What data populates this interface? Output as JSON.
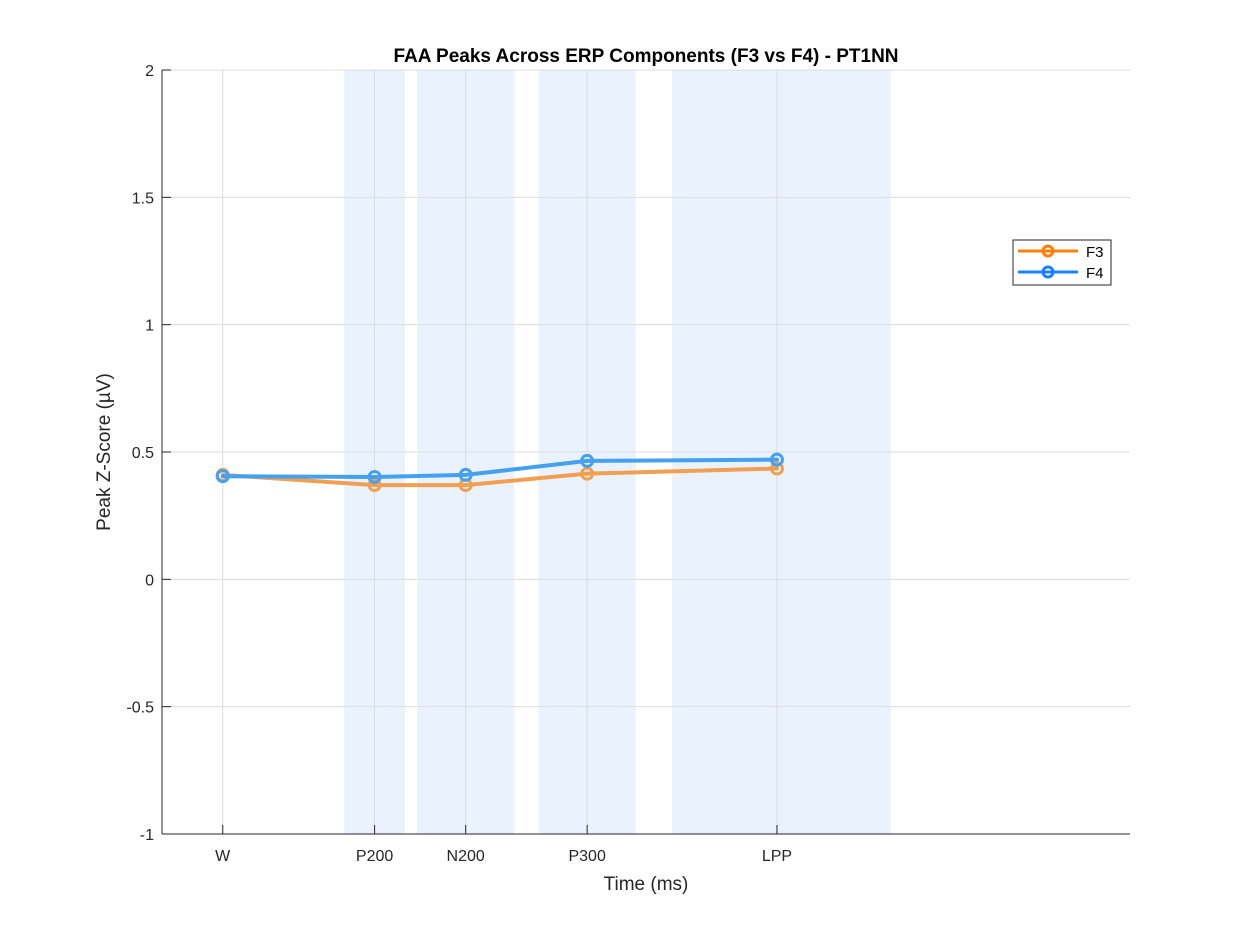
{
  "chart_data": {
    "type": "line",
    "title": "FAA Peaks Across ERP Components (F3 vs F4) - PT1NN",
    "xlabel": "Time (ms)",
    "ylabel": "Peak Z-Score (µV)",
    "categories": [
      "W",
      "P200",
      "N200",
      "P300",
      "LPP"
    ],
    "x": [
      0,
      200,
      320,
      480,
      730
    ],
    "xlim": [
      -80,
      1195
    ],
    "ylim": [
      -1,
      2
    ],
    "yticks": [
      -1,
      -0.5,
      0,
      0.5,
      1,
      1.5,
      2
    ],
    "ytick_labels": [
      "-1",
      "-0.5",
      "0",
      "0.5",
      "1",
      "1.5",
      "2"
    ],
    "grid": true,
    "legend_position": "right",
    "shaded_windows": [
      [
        160,
        240
      ],
      [
        256,
        384
      ],
      [
        416,
        544
      ],
      [
        592,
        880
      ]
    ],
    "shade_color": "#eaf3fd",
    "series": [
      {
        "name": "F3",
        "color": "#f0a050",
        "legend_color": "#ff7f0e",
        "values": [
          0.41,
          0.37,
          0.37,
          0.415,
          0.435
        ]
      },
      {
        "name": "F4",
        "color": "#45a1f0",
        "legend_color": "#1a80ff",
        "values": [
          0.405,
          0.402,
          0.41,
          0.465,
          0.47
        ]
      }
    ]
  }
}
